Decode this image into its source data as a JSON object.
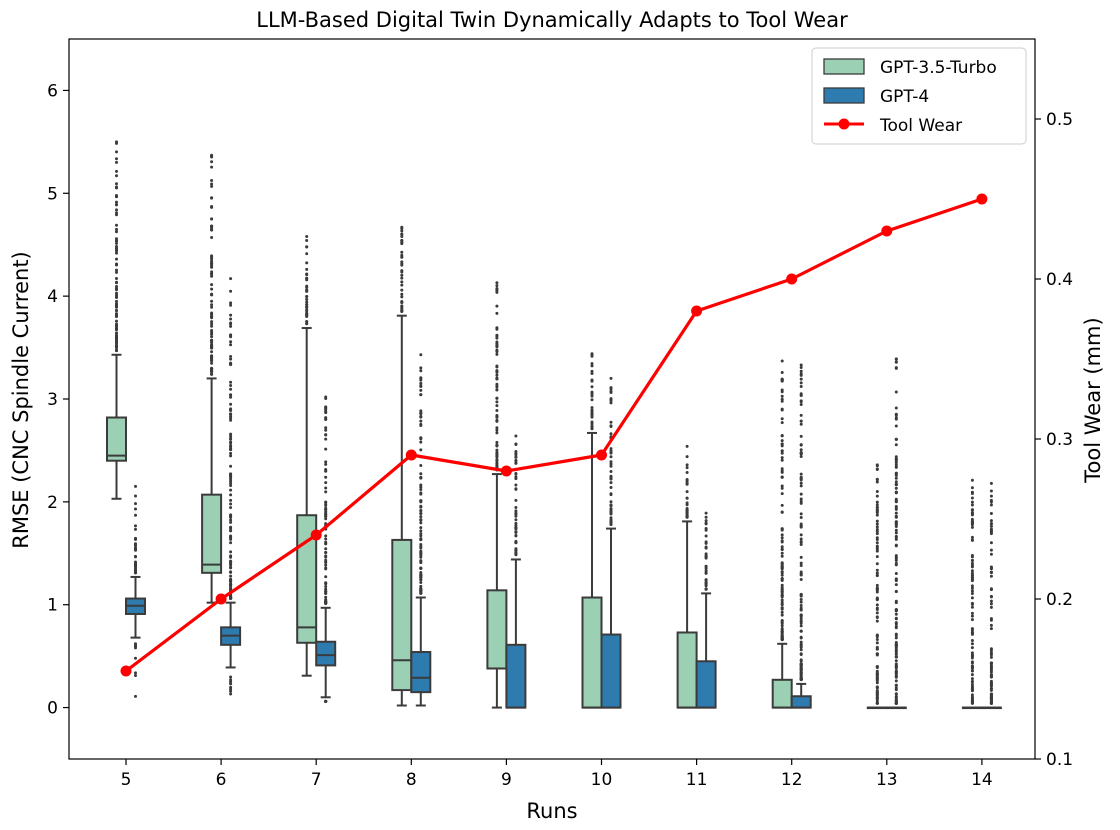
{
  "chart_data": {
    "type": "box",
    "title": "LLM-Based Digital Twin Dynamically Adapts to Tool Wear",
    "xlabel": "Runs",
    "ylabel_left": "RMSE (CNC Spindle Current)",
    "ylabel_right": "Tool Wear (mm)",
    "ylim_left": [
      -0.5,
      6.5
    ],
    "ylim_right": [
      0.1,
      0.55
    ],
    "yticks_left": [
      "0",
      "1",
      "2",
      "3",
      "4",
      "5",
      "6"
    ],
    "yticks_right": [
      "0.1",
      "0.2",
      "0.3",
      "0.4",
      "0.5"
    ],
    "categories": [
      "5",
      "6",
      "7",
      "8",
      "9",
      "10",
      "11",
      "12",
      "13",
      "14"
    ],
    "colors": {
      "gpt35": "#9bd0b5",
      "gpt4": "#2e7bb0",
      "tool_wear": "#ff0000",
      "box_edge": "#3b3b3b",
      "right_axis_label": "#e00000"
    },
    "series": [
      {
        "name": "GPT-3.5-Turbo",
        "boxes": [
          {
            "q1": 2.4,
            "median": 2.45,
            "q3": 2.82,
            "whisker_low": 2.03,
            "whisker_high": 3.43,
            "outlier_max": 5.5
          },
          {
            "q1": 1.31,
            "median": 1.39,
            "q3": 2.07,
            "whisker_low": 1.02,
            "whisker_high": 3.2,
            "outlier_max": 5.37
          },
          {
            "q1": 0.63,
            "median": 0.78,
            "q3": 1.87,
            "whisker_low": 0.31,
            "whisker_high": 3.69,
            "outlier_max": 4.58
          },
          {
            "q1": 0.17,
            "median": 0.46,
            "q3": 1.63,
            "whisker_low": 0.02,
            "whisker_high": 3.81,
            "outlier_max": 4.67
          },
          {
            "q1": 0.38,
            "median": 0.38,
            "q3": 1.14,
            "whisker_low": 0.0,
            "whisker_high": 2.27,
            "outlier_max": 4.13
          },
          {
            "q1": 0.0,
            "median": 0.0,
            "q3": 1.07,
            "whisker_low": 0.0,
            "whisker_high": 2.67,
            "outlier_max": 3.44
          },
          {
            "q1": 0.0,
            "median": 0.0,
            "q3": 0.73,
            "whisker_low": 0.0,
            "whisker_high": 1.81,
            "outlier_max": 2.54
          },
          {
            "q1": 0.0,
            "median": 0.0,
            "q3": 0.27,
            "whisker_low": 0.0,
            "whisker_high": 0.62,
            "outlier_max": 3.37
          },
          {
            "q1": 0.0,
            "median": 0.0,
            "q3": 0.0,
            "whisker_low": 0.0,
            "whisker_high": 0.0,
            "outlier_max": 2.36
          },
          {
            "q1": 0.0,
            "median": 0.0,
            "q3": 0.0,
            "whisker_low": 0.0,
            "whisker_high": 0.0,
            "outlier_max": 2.21
          }
        ]
      },
      {
        "name": "GPT-4",
        "boxes": [
          {
            "q1": 0.91,
            "median": 0.99,
            "q3": 1.06,
            "whisker_low": 0.68,
            "whisker_high": 1.27,
            "outlier_max": 2.15
          },
          {
            "q1": 0.61,
            "median": 0.7,
            "q3": 0.78,
            "whisker_low": 0.39,
            "whisker_high": 1.02,
            "outlier_max": 4.17
          },
          {
            "q1": 0.41,
            "median": 0.51,
            "q3": 0.64,
            "whisker_low": 0.1,
            "whisker_high": 0.97,
            "outlier_max": 3.02
          },
          {
            "q1": 0.15,
            "median": 0.29,
            "q3": 0.54,
            "whisker_low": 0.02,
            "whisker_high": 1.07,
            "outlier_max": 3.43
          },
          {
            "q1": 0.0,
            "median": 0.0,
            "q3": 0.61,
            "whisker_low": 0.0,
            "whisker_high": 1.44,
            "outlier_max": 2.64
          },
          {
            "q1": 0.0,
            "median": 0.0,
            "q3": 0.71,
            "whisker_low": 0.0,
            "whisker_high": 1.74,
            "outlier_max": 3.2
          },
          {
            "q1": 0.0,
            "median": 0.0,
            "q3": 0.45,
            "whisker_low": 0.0,
            "whisker_high": 1.11,
            "outlier_max": 1.89
          },
          {
            "q1": 0.0,
            "median": 0.0,
            "q3": 0.11,
            "whisker_low": 0.0,
            "whisker_high": 0.23,
            "outlier_max": 3.33
          },
          {
            "q1": 0.0,
            "median": 0.0,
            "q3": 0.0,
            "whisker_low": 0.0,
            "whisker_high": 0.0,
            "outlier_max": 3.39
          },
          {
            "q1": 0.0,
            "median": 0.0,
            "q3": 0.0,
            "whisker_low": 0.0,
            "whisker_high": 0.0,
            "outlier_max": 2.18
          }
        ]
      }
    ],
    "line": {
      "name": "Tool Wear",
      "values": [
        0.155,
        0.2,
        0.24,
        0.29,
        0.28,
        0.29,
        0.38,
        0.4,
        0.43,
        0.45
      ]
    },
    "legend": {
      "position": "top-right",
      "entries": [
        "GPT-3.5-Turbo",
        "GPT-4",
        "Tool Wear"
      ]
    }
  }
}
